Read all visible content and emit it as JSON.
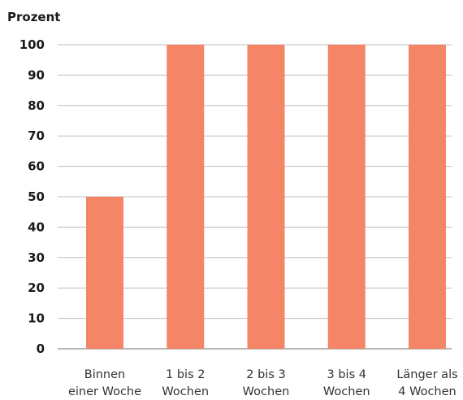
{
  "chart_data": {
    "type": "bar",
    "title": "",
    "xlabel": "",
    "ylabel": "Prozent",
    "categories": [
      [
        "Binnen",
        "einer Woche"
      ],
      [
        "1 bis 2",
        "Wochen"
      ],
      [
        "2 bis 3",
        "Wochen"
      ],
      [
        "3 bis 4",
        "Wochen"
      ],
      [
        "Länger als",
        "4 Wochen"
      ]
    ],
    "values": [
      50,
      100,
      100,
      100,
      100
    ],
    "ylim": [
      0,
      100
    ],
    "yticks": [
      "0",
      "10",
      "20",
      "30",
      "40",
      "50",
      "60",
      "70",
      "80",
      "90",
      "100"
    ],
    "grid": true,
    "legend": "none",
    "colors": {
      "bar": "#f48566"
    }
  }
}
